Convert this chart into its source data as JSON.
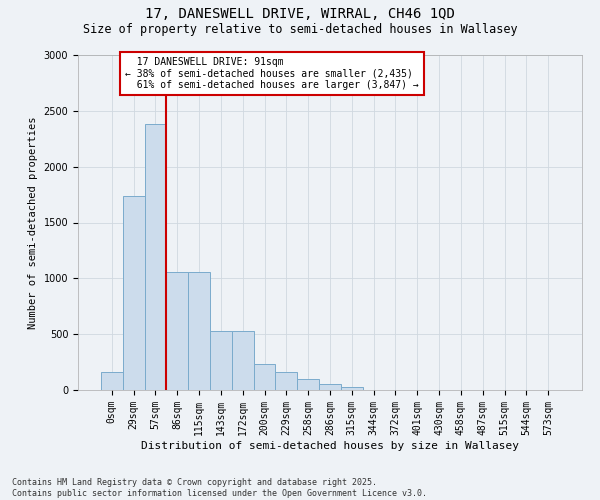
{
  "title1": "17, DANESWELL DRIVE, WIRRAL, CH46 1QD",
  "title2": "Size of property relative to semi-detached houses in Wallasey",
  "xlabel": "Distribution of semi-detached houses by size in Wallasey",
  "ylabel": "Number of semi-detached properties",
  "footnote": "Contains HM Land Registry data © Crown copyright and database right 2025.\nContains public sector information licensed under the Open Government Licence v3.0.",
  "bar_labels": [
    "0sqm",
    "29sqm",
    "57sqm",
    "86sqm",
    "115sqm",
    "143sqm",
    "172sqm",
    "200sqm",
    "229sqm",
    "258sqm",
    "286sqm",
    "315sqm",
    "344sqm",
    "372sqm",
    "401sqm",
    "430sqm",
    "458sqm",
    "487sqm",
    "515sqm",
    "544sqm",
    "573sqm"
  ],
  "bar_values": [
    160,
    1740,
    2380,
    1060,
    1060,
    530,
    530,
    230,
    160,
    100,
    55,
    30,
    0,
    0,
    0,
    0,
    0,
    0,
    0,
    0,
    0
  ],
  "bar_color": "#ccdcec",
  "bar_edge_color": "#7aabcc",
  "property_size_label": "17 DANESWELL DRIVE: 91sqm",
  "pct_smaller": 38,
  "count_smaller": 2435,
  "pct_larger": 61,
  "count_larger": 3847,
  "vline_x": 2.5,
  "vline_color": "#cc0000",
  "annotation_box_color": "#cc0000",
  "ylim": [
    0,
    3000
  ],
  "yticks": [
    0,
    500,
    1000,
    1500,
    2000,
    2500,
    3000
  ],
  "grid_color": "#d0d8e0",
  "bg_color": "#eef2f6",
  "title_fontsize": 10,
  "subtitle_fontsize": 8.5,
  "xlabel_fontsize": 8,
  "ylabel_fontsize": 7.5,
  "tick_fontsize": 7,
  "annotation_fontsize": 7,
  "footnote_fontsize": 6
}
